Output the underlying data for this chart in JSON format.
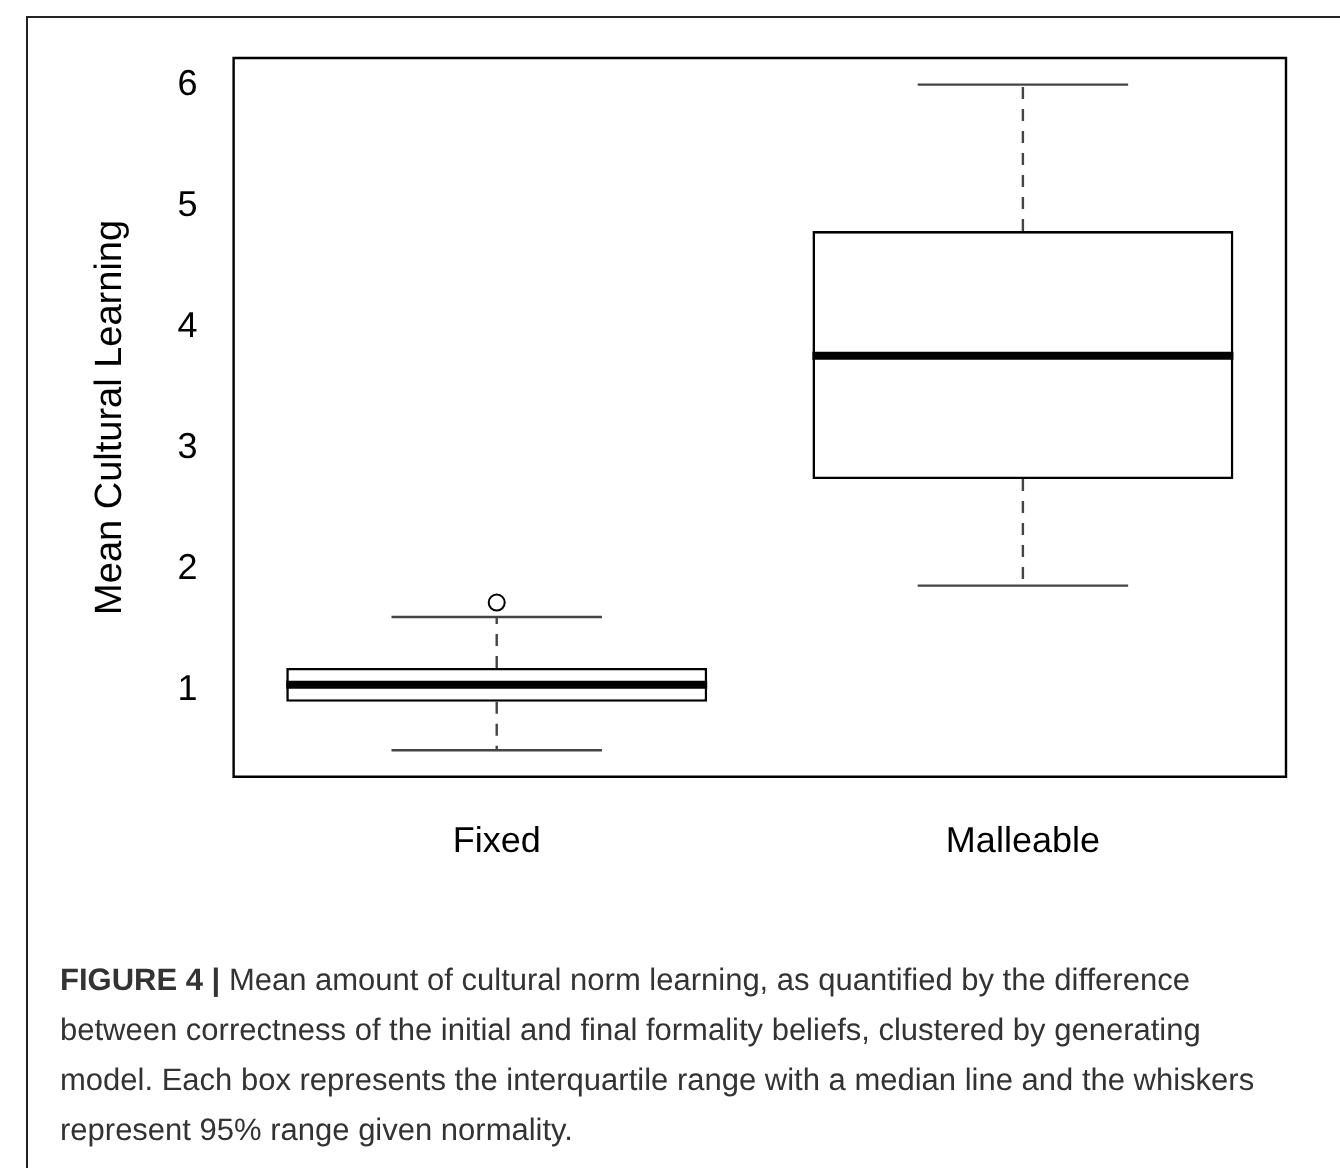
{
  "chart_data": {
    "type": "box",
    "categories": [
      "Fixed",
      "Malleable"
    ],
    "ylabel": "Mean Cultural Learning",
    "ylim": [
      0.28,
      6.22
    ],
    "yticks": [
      1,
      2,
      3,
      4,
      5,
      6
    ],
    "grid": false,
    "legend": false,
    "boxes": [
      {
        "low": 0.5,
        "q1": 0.9,
        "median": 1.04,
        "q3": 1.18,
        "high": 1.6,
        "outliers": [
          1.72
        ]
      },
      {
        "low": 1.86,
        "q1": 2.74,
        "median": 3.76,
        "q3": 4.79,
        "high": 6
      }
    ],
    "annotations": [
      "FIGURE 4 | Mean amount of cultural norm learning, as quantified by the difference between correctness of the initial and final formality beliefs, clustered by generating model. Each box represents the interquartile range with a median line and the whiskers represent 95% range given normality."
    ]
  }
}
